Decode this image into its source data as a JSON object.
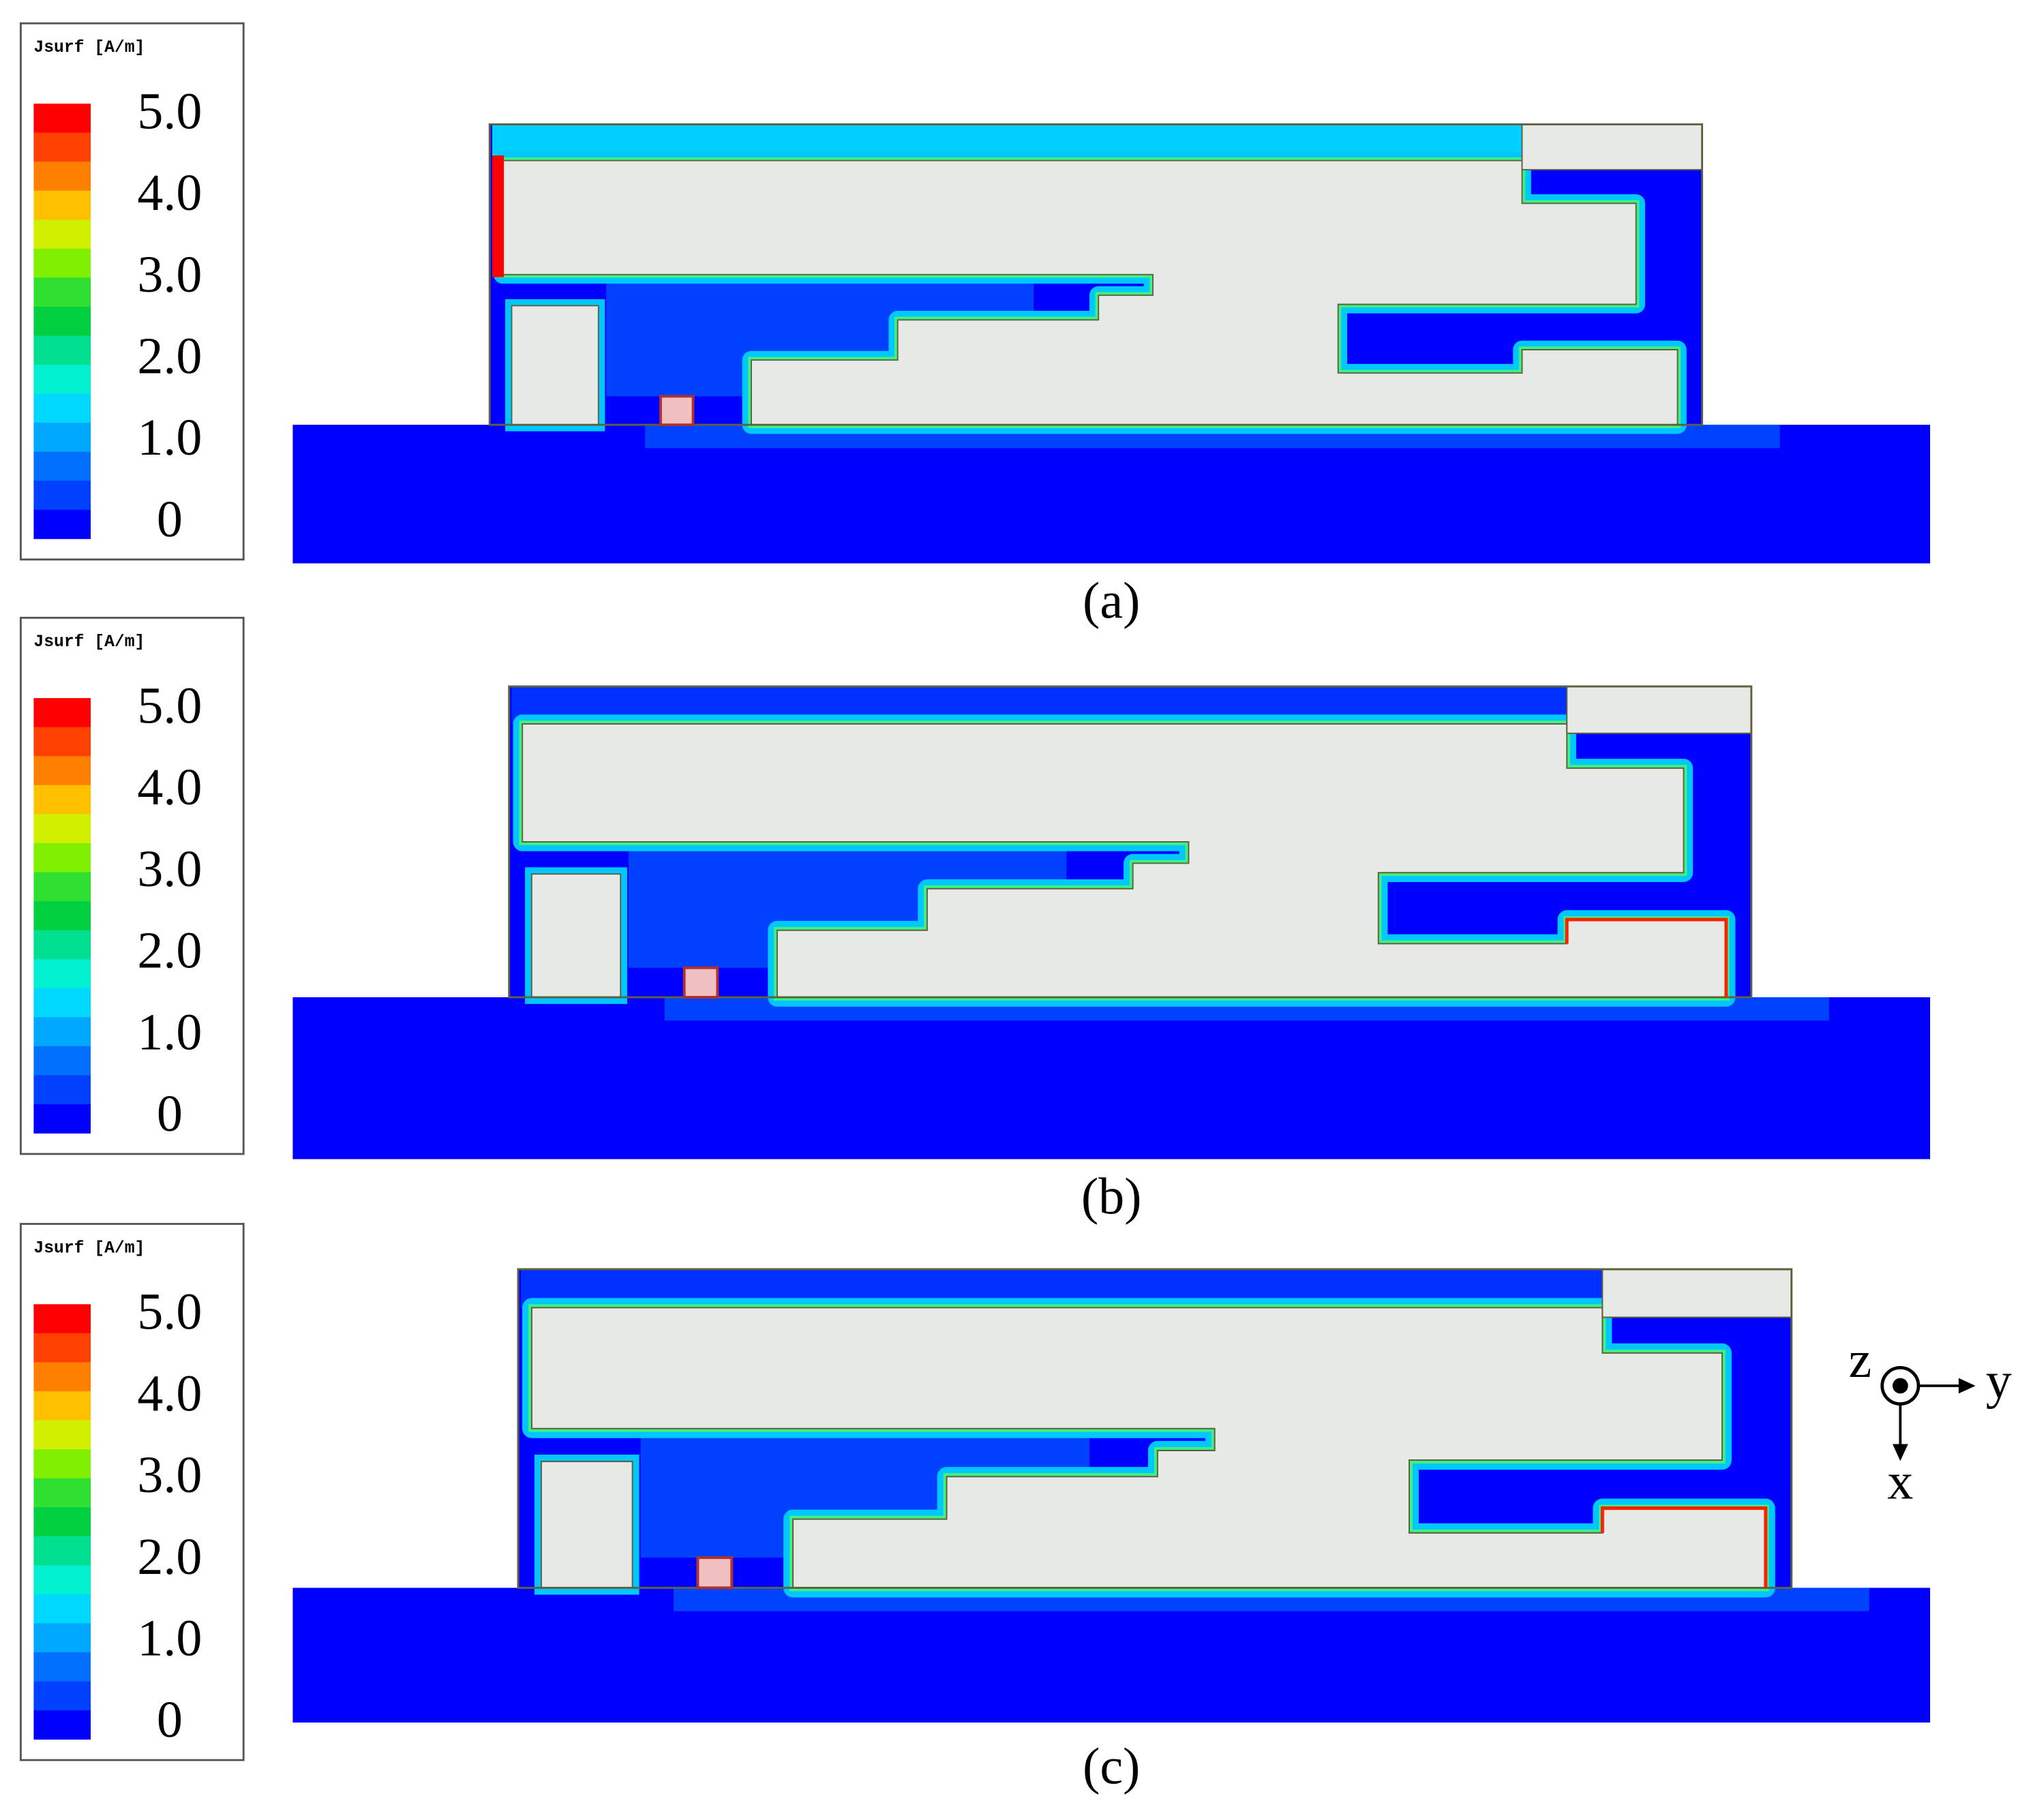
{
  "panels": [
    {
      "legend": {
        "title": "Jsurf [A/m]",
        "ticks": [
          "5.0",
          "4.0",
          "3.0",
          "2.0",
          "1.0",
          "0"
        ]
      },
      "caption": "(a)"
    },
    {
      "legend": {
        "title": "Jsurf [A/m]",
        "ticks": [
          "5.0",
          "4.0",
          "3.0",
          "2.0",
          "1.0",
          "0"
        ]
      },
      "caption": "(b)"
    },
    {
      "legend": {
        "title": "Jsurf [A/m]",
        "ticks": [
          "5.0",
          "4.0",
          "3.0",
          "2.0",
          "1.0",
          "0"
        ]
      },
      "caption": "(c)"
    }
  ],
  "axes": {
    "z": "z",
    "y": "y",
    "x": "x"
  }
}
